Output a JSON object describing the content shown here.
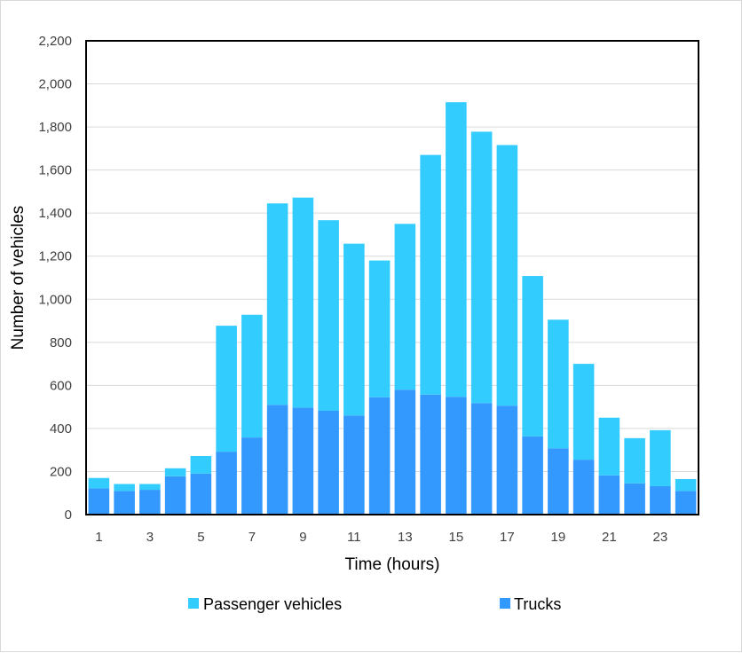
{
  "chart_data": {
    "type": "bar",
    "stacked": true,
    "xlabel": "Time (hours)",
    "ylabel": "Number of vehicles",
    "ylim": [
      0,
      2200
    ],
    "yticks": [
      0,
      200,
      400,
      600,
      800,
      1000,
      1200,
      1400,
      1600,
      1800,
      2000,
      2200
    ],
    "ytick_labels": [
      "0",
      "200",
      "400",
      "600",
      "800",
      "1,000",
      "1,200",
      "1,400",
      "1,600",
      "1,800",
      "2,000",
      "2,200"
    ],
    "categories": [
      1,
      2,
      3,
      4,
      5,
      6,
      7,
      8,
      9,
      10,
      11,
      12,
      13,
      14,
      15,
      16,
      17,
      18,
      19,
      20,
      21,
      22,
      23,
      24
    ],
    "xtick_labels": [
      "1",
      "3",
      "5",
      "7",
      "9",
      "11",
      "13",
      "15",
      "17",
      "19",
      "21",
      "23"
    ],
    "grid": true,
    "legend": "bottom",
    "series": [
      {
        "name": "Trucks",
        "color": "#3399ff",
        "values": [
          122,
          110,
          115,
          178,
          190,
          292,
          358,
          510,
          497,
          482,
          460,
          545,
          580,
          557,
          547,
          518,
          506,
          363,
          308,
          255,
          182,
          145,
          132,
          110
        ]
      },
      {
        "name": "Passenger vehicles",
        "color": "#33ccff",
        "values": [
          48,
          32,
          27,
          37,
          82,
          585,
          570,
          935,
          975,
          885,
          798,
          635,
          770,
          1113,
          1368,
          1260,
          1210,
          745,
          597,
          445,
          268,
          210,
          260,
          55
        ]
      }
    ],
    "legend_entries": [
      {
        "name": "Passenger vehicles",
        "color": "#33ccff"
      },
      {
        "name": "Trucks",
        "color": "#3399ff"
      }
    ]
  }
}
